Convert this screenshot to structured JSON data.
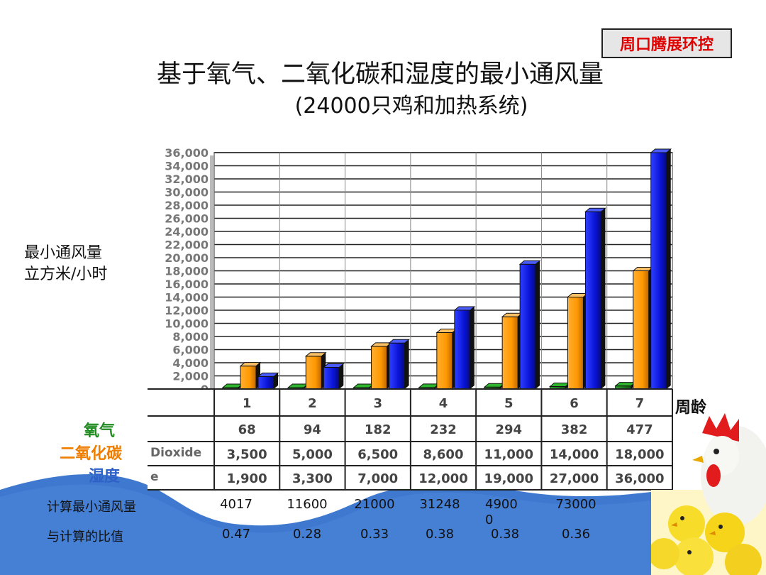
{
  "company_badge": "周口腾展环控",
  "title": "基于氧气、二氧化碳和湿度的最小通风量",
  "subtitle": "(24000只鸡和加热系统)",
  "y_axis_label_line1": "最小通风量",
  "y_axis_label_line2": "立方米/小时",
  "x_axis_label": "周龄",
  "legend_text": {
    "oxygen": "氧气",
    "co2": "二氧化碳",
    "humidity": "湿度"
  },
  "colors": {
    "oxygen": "#1f8a1f",
    "co2": "#ff9900",
    "humidity": "#0a14d8",
    "badge_text": "#e00000"
  },
  "table_row_labels": {
    "co2": "Dioxide",
    "humidity": "e"
  },
  "table_values": {
    "oxygen": [
      "68",
      "94",
      "182",
      "232",
      "294",
      "382",
      "477"
    ],
    "co2": [
      "3,500",
      "5,000",
      "6,500",
      "8,600",
      "11,000",
      "14,000",
      "18,000"
    ],
    "humidity": [
      "1,900",
      "3,300",
      "7,000",
      "12,000",
      "19,000",
      "27,000",
      "36,000"
    ]
  },
  "calc_rows": {
    "min_vent_label": "计算最小通风量",
    "min_vent_values": [
      "4017",
      "11600",
      "21000",
      "31248",
      "49000",
      "73000"
    ],
    "ratio_label": "与计算的比值",
    "ratio_values": [
      "0.47",
      "0.28",
      "0.33",
      "0.38",
      "0.38",
      "0.36"
    ]
  },
  "chart_data": {
    "type": "bar",
    "categories": [
      "1",
      "2",
      "3",
      "4",
      "5",
      "6",
      "7"
    ],
    "series": [
      {
        "name": "氧气",
        "values": [
          68,
          94,
          182,
          232,
          294,
          382,
          477
        ]
      },
      {
        "name": "二氧化碳",
        "values": [
          3500,
          5000,
          6500,
          8600,
          11000,
          14000,
          18000
        ]
      },
      {
        "name": "湿度",
        "values": [
          1900,
          3300,
          7000,
          12000,
          19000,
          27000,
          36000
        ]
      }
    ],
    "title": "基于氧气、二氧化碳和湿度的最小通风量",
    "xlabel": "周龄",
    "ylabel": "最小通风量 立方米/小时",
    "ylim": [
      0,
      36000
    ],
    "yticks": [
      "0",
      "2,000",
      "4,000",
      "6,000",
      "8,000",
      "10,000",
      "12,000",
      "14,000",
      "16,000",
      "18,000",
      "20,000",
      "22,000",
      "24,000",
      "26,000",
      "28,000",
      "30,000",
      "32,000",
      "34,000",
      "36,000"
    ],
    "grid": true
  }
}
